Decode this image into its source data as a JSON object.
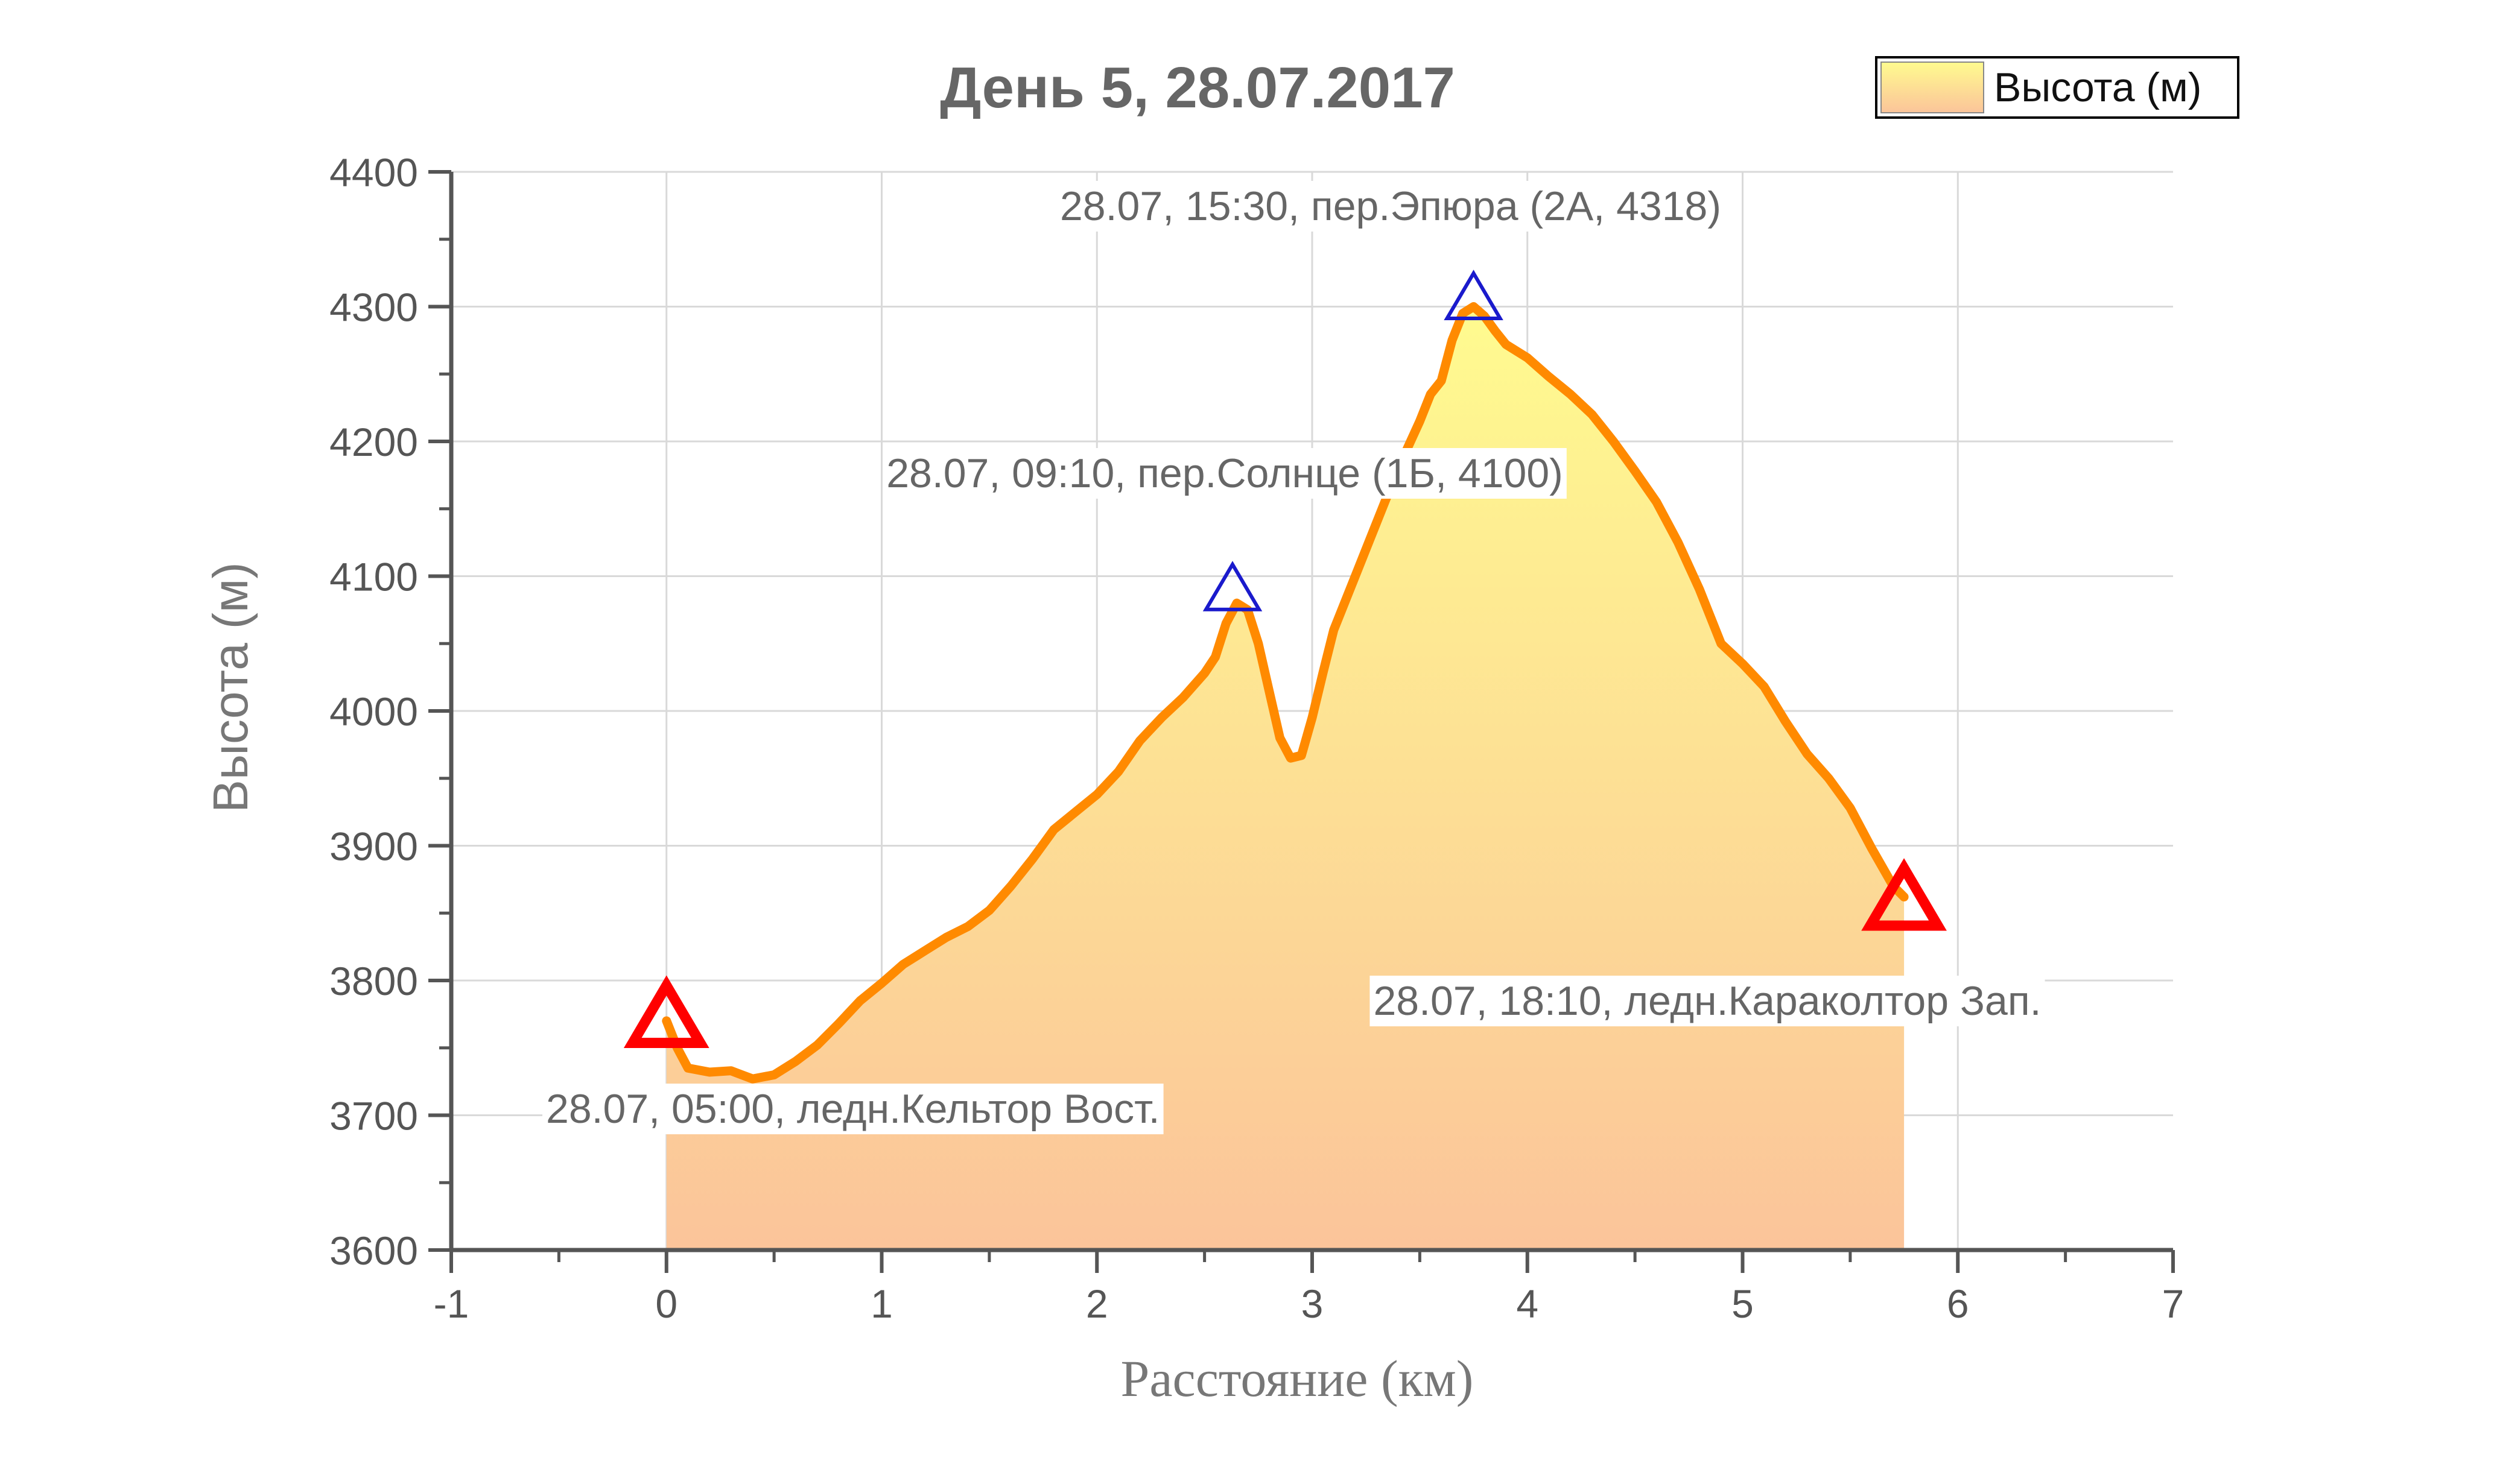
{
  "chart_data": {
    "type": "area",
    "title": "День 5, 28.07.2017",
    "xlabel": "Расстояние (км)",
    "ylabel": "Высота (м)",
    "xlim": [
      -1,
      7
    ],
    "ylim": [
      3600,
      4400
    ],
    "x_ticks": [
      "-1",
      "0",
      "1",
      "2",
      "3",
      "4",
      "5",
      "6",
      "7"
    ],
    "y_ticks": [
      "3600",
      "3700",
      "3800",
      "3900",
      "4000",
      "4100",
      "4200",
      "4300",
      "4400"
    ],
    "grid": true,
    "legend": {
      "position": "top-right",
      "entries": [
        "Высота (м)"
      ]
    },
    "colors": {
      "line": "#ff8a00",
      "fill_top": "#fffb8f",
      "fill_bottom": "#fbc49a",
      "start_end_marker": "#ff0000",
      "pass_marker": "#1a1acc",
      "grid": "#d9d9d9",
      "axis": "#555555"
    },
    "series": [
      {
        "name": "Высота (м)",
        "points": [
          [
            0,
            3770
          ],
          [
            0.05,
            3750
          ],
          [
            0.1,
            3735
          ],
          [
            0.2,
            3732
          ],
          [
            0.3,
            3733
          ],
          [
            0.35,
            3730
          ],
          [
            0.4,
            3727
          ],
          [
            0.5,
            3730
          ],
          [
            0.6,
            3740
          ],
          [
            0.7,
            3752
          ],
          [
            0.8,
            3768
          ],
          [
            0.9,
            3785
          ],
          [
            1.0,
            3798
          ],
          [
            1.1,
            3812
          ],
          [
            1.2,
            3822
          ],
          [
            1.3,
            3832
          ],
          [
            1.4,
            3840
          ],
          [
            1.5,
            3852
          ],
          [
            1.6,
            3870
          ],
          [
            1.7,
            3890
          ],
          [
            1.8,
            3912
          ],
          [
            1.9,
            3925
          ],
          [
            2.0,
            3938
          ],
          [
            2.1,
            3955
          ],
          [
            2.2,
            3978
          ],
          [
            2.3,
            3995
          ],
          [
            2.4,
            4010
          ],
          [
            2.5,
            4028
          ],
          [
            2.55,
            4040
          ],
          [
            2.6,
            4065
          ],
          [
            2.65,
            4080
          ],
          [
            2.7,
            4075
          ],
          [
            2.75,
            4050
          ],
          [
            2.8,
            4015
          ],
          [
            2.85,
            3980
          ],
          [
            2.9,
            3965
          ],
          [
            2.95,
            3967
          ],
          [
            3.0,
            3995
          ],
          [
            3.05,
            4028
          ],
          [
            3.1,
            4060
          ],
          [
            3.2,
            4100
          ],
          [
            3.3,
            4140
          ],
          [
            3.4,
            4180
          ],
          [
            3.5,
            4215
          ],
          [
            3.55,
            4235
          ],
          [
            3.6,
            4245
          ],
          [
            3.65,
            4275
          ],
          [
            3.7,
            4295
          ],
          [
            3.75,
            4300
          ],
          [
            3.8,
            4293
          ],
          [
            3.85,
            4282
          ],
          [
            3.9,
            4272
          ],
          [
            4.0,
            4262
          ],
          [
            4.1,
            4248
          ],
          [
            4.2,
            4235
          ],
          [
            4.3,
            4220
          ],
          [
            4.4,
            4200
          ],
          [
            4.5,
            4178
          ],
          [
            4.6,
            4155
          ],
          [
            4.7,
            4125
          ],
          [
            4.8,
            4090
          ],
          [
            4.9,
            4050
          ],
          [
            5.0,
            4035
          ],
          [
            5.1,
            4018
          ],
          [
            5.2,
            3992
          ],
          [
            5.3,
            3968
          ],
          [
            5.4,
            3950
          ],
          [
            5.5,
            3928
          ],
          [
            5.6,
            3898
          ],
          [
            5.7,
            3870
          ],
          [
            5.75,
            3862
          ]
        ]
      }
    ],
    "markers": [
      {
        "type": "start",
        "x": 0,
        "y": 3775
      },
      {
        "type": "pass",
        "x": 2.63,
        "y": 4092
      },
      {
        "type": "pass",
        "x": 3.75,
        "y": 4308
      },
      {
        "type": "end",
        "x": 5.75,
        "y": 3862
      }
    ],
    "annotations": [
      {
        "text": "28.07, 05:00, ледн.Кельтор Вост.",
        "x": 0,
        "y": 3700
      },
      {
        "text": "28.07, 09:10, пер.Солнце (1Б, 4100)",
        "x": 2.63,
        "y": 4170
      },
      {
        "text": "28.07, 15:30, пер.Эпюра (2А, 4318)",
        "x": 3.75,
        "y": 4370
      },
      {
        "text": "28.07, 18:10, ледн.Караколтор Зап.",
        "x": 5.75,
        "y": 3777
      }
    ]
  }
}
